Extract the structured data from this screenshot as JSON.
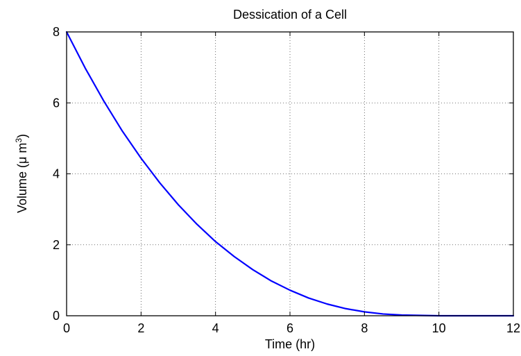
{
  "chart_data": {
    "type": "line",
    "title": "Dessication of a Cell",
    "xlabel": "Time (hr)",
    "ylabel": {
      "prefix": "Volume (",
      "mu": "μ",
      "unit": " m",
      "sup": "3",
      "suffix": ")"
    },
    "xlim": [
      0,
      12
    ],
    "ylim": [
      0,
      8
    ],
    "xticks": [
      0,
      2,
      4,
      6,
      8,
      10,
      12
    ],
    "yticks": [
      0,
      2,
      4,
      6,
      8
    ],
    "xtick_labels": [
      "0",
      "2",
      "4",
      "6",
      "8",
      "10",
      "12"
    ],
    "ytick_labels": [
      "0",
      "2",
      "4",
      "6",
      "8"
    ],
    "grid": true,
    "series": [
      {
        "color": "#0000ff",
        "x": [
          0,
          0.5,
          1,
          1.5,
          2,
          2.5,
          3,
          3.5,
          4,
          4.5,
          5,
          5.5,
          6,
          6.5,
          7,
          7.5,
          8,
          8.5,
          9,
          9.5,
          10,
          10.5,
          11,
          11.5,
          12
        ],
        "y": [
          8.0,
          6.98,
          6.05,
          5.2,
          4.44,
          3.75,
          3.13,
          2.58,
          2.09,
          1.67,
          1.3,
          0.98,
          0.72,
          0.5,
          0.33,
          0.2,
          0.11,
          0.05,
          0.02,
          0.01,
          0.0,
          0.0,
          0.0,
          0.0,
          0.0
        ]
      }
    ]
  }
}
